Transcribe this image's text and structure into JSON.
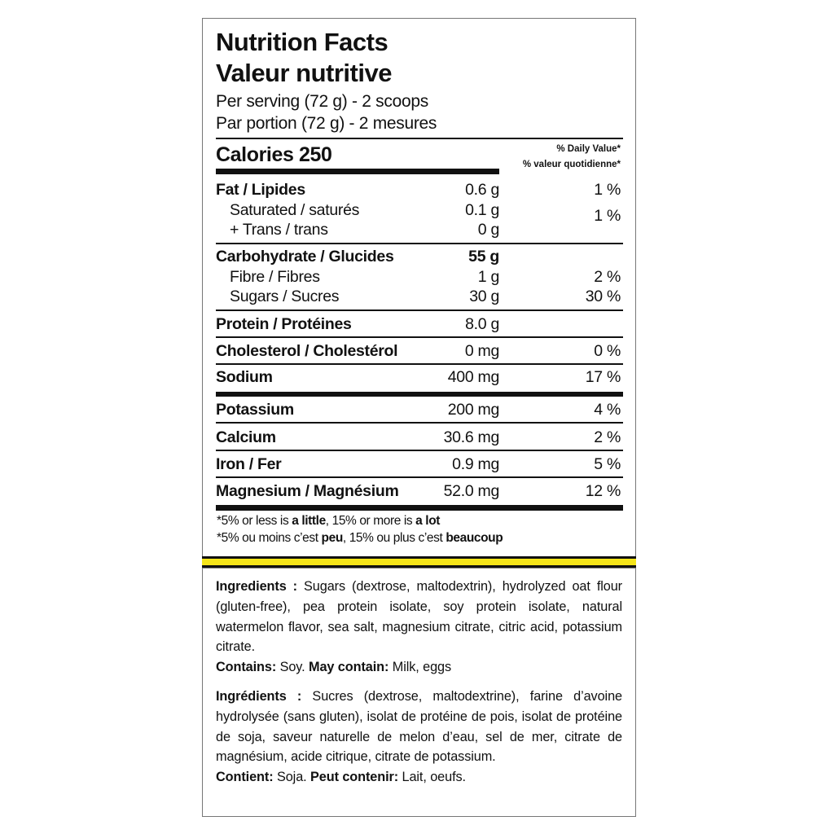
{
  "header": {
    "title_en": "Nutrition Facts",
    "title_fr": "Valeur nutritive",
    "serving_en": "Per serving (72 g) - 2 scoops",
    "serving_fr": "Par portion (72 g) - 2 mesures"
  },
  "calories": {
    "label": "Calories 250",
    "dv_en": "% Daily Value*",
    "dv_fr": "% valeur quotidienne*"
  },
  "nutrients": {
    "fat": {
      "label": "Fat / Lipides",
      "amount": "0.6 g",
      "dv": "1 %"
    },
    "saturated": {
      "label": "Saturated / saturés",
      "amount": "0.1 g"
    },
    "trans": {
      "label": "+ Trans / trans",
      "amount": "0 g"
    },
    "sat_trans_dv": "1 %",
    "carbohydrate": {
      "label": "Carbohydrate / Glucides",
      "amount": "55 g"
    },
    "fibre": {
      "label": "Fibre / Fibres",
      "amount": "1 g",
      "dv": "2 %"
    },
    "sugars": {
      "label": "Sugars / Sucres",
      "amount": "30 g",
      "dv": "30 %"
    },
    "protein": {
      "label": "Protein / Protéines",
      "amount": "8.0 g"
    },
    "cholesterol": {
      "label": "Cholesterol / Cholestérol",
      "amount": "0 mg",
      "dv": "0 %"
    },
    "sodium": {
      "label": "Sodium",
      "amount": "400 mg",
      "dv": "17 %"
    },
    "potassium": {
      "label": "Potassium",
      "amount": "200 mg",
      "dv": "4 %"
    },
    "calcium": {
      "label": "Calcium",
      "amount": "30.6 mg",
      "dv": "2 %"
    },
    "iron": {
      "label": "Iron / Fer",
      "amount": "0.9 mg",
      "dv": "5 %"
    },
    "magnesium": {
      "label": "Magnesium / Magnésium",
      "amount": "52.0 mg",
      "dv": "12 %"
    }
  },
  "footnote": {
    "en": [
      "*5% or less is ",
      "a little",
      ", 15% or more is ",
      "a lot"
    ],
    "fr": [
      "*5% ou moins c’est ",
      "peu",
      ", 15% ou plus c’est ",
      "beaucoup"
    ]
  },
  "colors": {
    "stripe": "#f5e51a",
    "text": "#111111"
  },
  "ingredients": {
    "en_label": "Ingredients :",
    "en_text": " Sugars (dextrose, maltodextrin), hydrolyzed oat flour (gluten-free), pea protein isolate, soy protein isolate, natural watermelon flavor, sea salt, magnesium citrate, citric acid, potassium citrate.",
    "contains_label": "Contains:",
    "contains_text": " Soy. ",
    "may_contain_label": "May contain:",
    "may_contain_text": " Milk, eggs",
    "fr_label": "Ingrédients :",
    "fr_text": " Sucres (dextrose, maltodextrine), farine d’avoine hydrolysée (sans gluten), isolat de protéine de pois, isolat de protéine de soja, saveur naturelle de melon d’eau, sel de mer, citrate de magnésium, acide citrique, citrate de potassium.",
    "contient_label": "Contient:",
    "contient_text": " Soja. ",
    "peut_label": "Peut contenir:",
    "peut_text": " Lait, oeufs."
  }
}
